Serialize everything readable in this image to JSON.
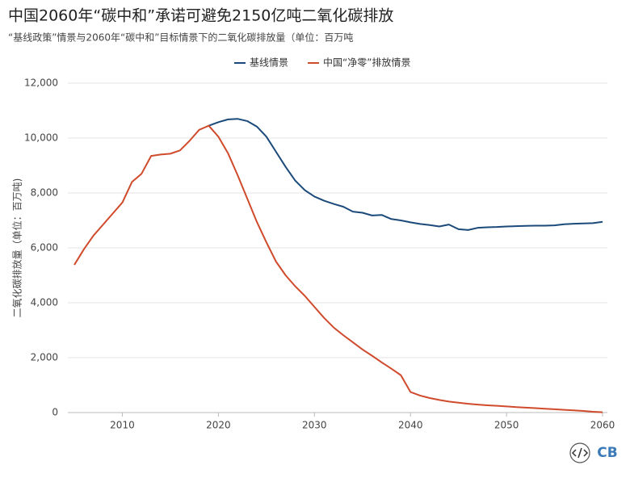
{
  "chart_data": {
    "type": "line",
    "title": "中国2060年“碳中和”承诺可避免2150亿吨二氧化碳排放",
    "subtitle": "“基线政策”情景与2060年“碳中和”目标情景下的二氧化碳排放量（单位：百万吨",
    "y_label": "二氧化碳排放量（单位：百万吨)",
    "logo": "CB",
    "x": [
      2005,
      2006,
      2007,
      2008,
      2009,
      2010,
      2011,
      2012,
      2013,
      2014,
      2015,
      2016,
      2017,
      2018,
      2019,
      2020,
      2021,
      2022,
      2023,
      2024,
      2025,
      2026,
      2027,
      2028,
      2029,
      2030,
      2031,
      2032,
      2033,
      2034,
      2035,
      2036,
      2037,
      2038,
      2039,
      2040,
      2041,
      2042,
      2043,
      2044,
      2045,
      2046,
      2047,
      2048,
      2049,
      2050,
      2051,
      2052,
      2053,
      2054,
      2055,
      2056,
      2057,
      2058,
      2059,
      2060
    ],
    "series": [
      {
        "name": "基线情景",
        "color": "#1b4a7a",
        "values": [
          null,
          null,
          null,
          null,
          null,
          null,
          null,
          null,
          null,
          null,
          null,
          null,
          null,
          null,
          10450,
          10580,
          10680,
          10700,
          10620,
          10420,
          10050,
          9500,
          8950,
          8450,
          8100,
          7870,
          7720,
          7600,
          7500,
          7320,
          7280,
          7180,
          7200,
          7050,
          7000,
          6930,
          6870,
          6830,
          6780,
          6850,
          6680,
          6650,
          6730,
          6750,
          6760,
          6780,
          6790,
          6800,
          6810,
          6810,
          6820,
          6860,
          6880,
          6890,
          6900,
          6950
        ]
      },
      {
        "name": "中国“净零”排放情景",
        "color": "#d04a2c",
        "values": [
          5380,
          5950,
          6450,
          6850,
          7250,
          7650,
          8400,
          8700,
          9350,
          9400,
          9430,
          9550,
          9900,
          10300,
          10450,
          10050,
          9450,
          8650,
          7800,
          6950,
          6200,
          5500,
          5000,
          4600,
          4250,
          3850,
          3450,
          3100,
          2820,
          2560,
          2300,
          2070,
          1830,
          1600,
          1360,
          750,
          620,
          530,
          460,
          400,
          360,
          320,
          290,
          265,
          245,
          225,
          200,
          180,
          160,
          140,
          120,
          100,
          80,
          60,
          30,
          10
        ]
      }
    ],
    "xlim": [
      2005,
      2060.5
    ],
    "xticks": [
      2010,
      2020,
      2030,
      2040,
      2050,
      2060
    ],
    "ylim": [
      0,
      12000
    ],
    "yticks": [
      0,
      {
        "value": 2000,
        "label": "2,000"
      },
      {
        "value": 4000,
        "label": "4,000"
      },
      {
        "value": 6000,
        "label": "6,000"
      },
      {
        "value": 8000,
        "label": "8,000"
      },
      {
        "value": 10000,
        "label": "10,000"
      },
      {
        "value": 12000,
        "label": "12,000"
      }
    ],
    "grid": true,
    "legend": "top"
  }
}
